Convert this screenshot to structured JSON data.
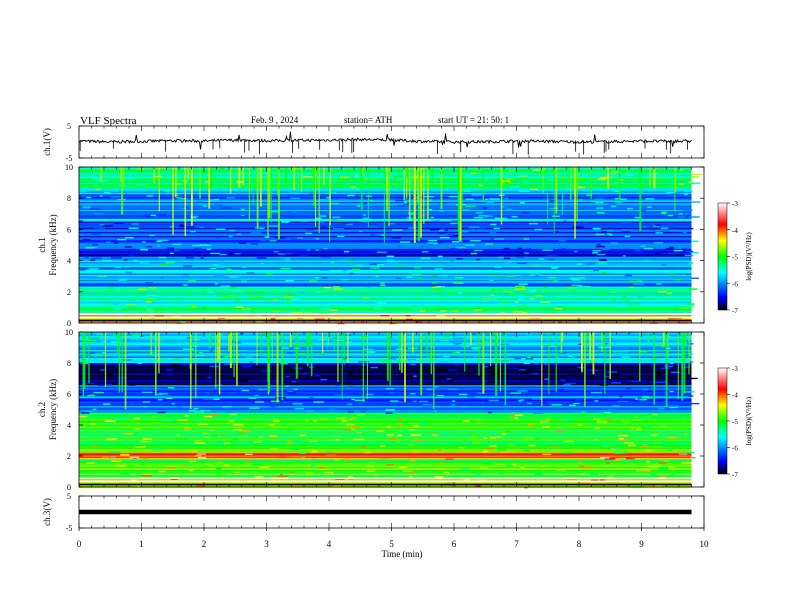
{
  "header": {
    "title": "VLF  Spectra",
    "date": "Feb. 9  , 2024",
    "station": "station= ATH",
    "start_ut": "start  UT  =    21: 50: 1"
  },
  "colorbar": {
    "label": "log(PSD)(V²/Hz)",
    "ticks": [
      "-3",
      "-4",
      "-5",
      "-6",
      "-7"
    ],
    "range": [
      -7,
      -3
    ],
    "colors": [
      "#000000",
      "#0000ff",
      "#00ffff",
      "#00ff00",
      "#ffff00",
      "#ff0000",
      "#ffffff"
    ]
  },
  "chart_data": [
    {
      "type": "line",
      "panel": "ch1-waveform",
      "ylabel": "ch.1(V)",
      "ylim": [
        -5,
        5
      ],
      "yticks": [
        "5",
        "-5"
      ],
      "color": "#000000",
      "x": [
        0,
        0.5,
        1,
        1.5,
        2,
        2.5,
        3,
        3.5,
        4,
        4.5,
        5,
        5.5,
        6,
        6.5,
        7,
        7.5,
        8,
        8.5,
        9,
        9.5,
        9.8
      ],
      "values": [
        0.3,
        0.0,
        0.2,
        0.4,
        0.3,
        0.6,
        0.4,
        0.5,
        0.6,
        0.8,
        0.6,
        0.2,
        0.0,
        0.1,
        0.3,
        0.2,
        0.0,
        0.1,
        0.3,
        0.2,
        0.3
      ]
    },
    {
      "type": "heatmap",
      "panel": "ch1-spectrogram",
      "ylabel": "ch.1\nFrequency  (kHz)",
      "ylim": [
        0,
        10
      ],
      "yticks": [
        "0",
        "2",
        "4",
        "6",
        "8",
        "10"
      ],
      "xlim": [
        0,
        9.8
      ],
      "value_label": "log(PSD)(V²/Hz)",
      "bands": [
        {
          "freq_khz": [
            0,
            0.6
          ],
          "log_psd": -4.2
        },
        {
          "freq_khz": [
            0.6,
            1.2
          ],
          "log_psd": -5.3
        },
        {
          "freq_khz": [
            1.2,
            2.4
          ],
          "log_psd": -5.4
        },
        {
          "freq_khz": [
            2.4,
            4.0
          ],
          "log_psd": -5.9
        },
        {
          "freq_khz": [
            4.0,
            6.5
          ],
          "log_psd": -6.3
        },
        {
          "freq_khz": [
            6.5,
            8.5
          ],
          "log_psd": -6.0
        },
        {
          "freq_khz": [
            8.5,
            10
          ],
          "log_psd": -5.3
        }
      ]
    },
    {
      "type": "heatmap",
      "panel": "ch2-spectrogram",
      "ylabel": "ch.2\nFrequency  (kHz)",
      "ylim": [
        0,
        10
      ],
      "yticks": [
        "0",
        "2",
        "4",
        "6",
        "8",
        "10"
      ],
      "xlim": [
        0,
        9.8
      ],
      "value_label": "log(PSD)(V²/Hz)",
      "bands": [
        {
          "freq_khz": [
            0,
            0.6
          ],
          "log_psd": -4.5
        },
        {
          "freq_khz": [
            0.6,
            1.8
          ],
          "log_psd": -4.9
        },
        {
          "freq_khz": [
            1.8,
            2.2
          ],
          "log_psd": -4.0
        },
        {
          "freq_khz": [
            2.2,
            4.8
          ],
          "log_psd": -5.0
        },
        {
          "freq_khz": [
            4.8,
            6.6
          ],
          "log_psd": -6.1
        },
        {
          "freq_khz": [
            6.6,
            8.0
          ],
          "log_psd": -6.9
        },
        {
          "freq_khz": [
            8.0,
            10
          ],
          "log_psd": -5.8
        }
      ]
    },
    {
      "type": "line",
      "panel": "ch3-waveform",
      "ylabel": "ch.3(V)",
      "ylim": [
        -5,
        5
      ],
      "yticks": [
        "5",
        "-5"
      ],
      "color": "#000000",
      "x": [
        0,
        9.8
      ],
      "values": [
        0,
        0
      ]
    }
  ],
  "xaxis": {
    "label": "Time  (min)",
    "ticks": [
      "0",
      "1",
      "2",
      "3",
      "4",
      "5",
      "6",
      "7",
      "8",
      "9",
      "10"
    ],
    "range": [
      0,
      10
    ]
  }
}
